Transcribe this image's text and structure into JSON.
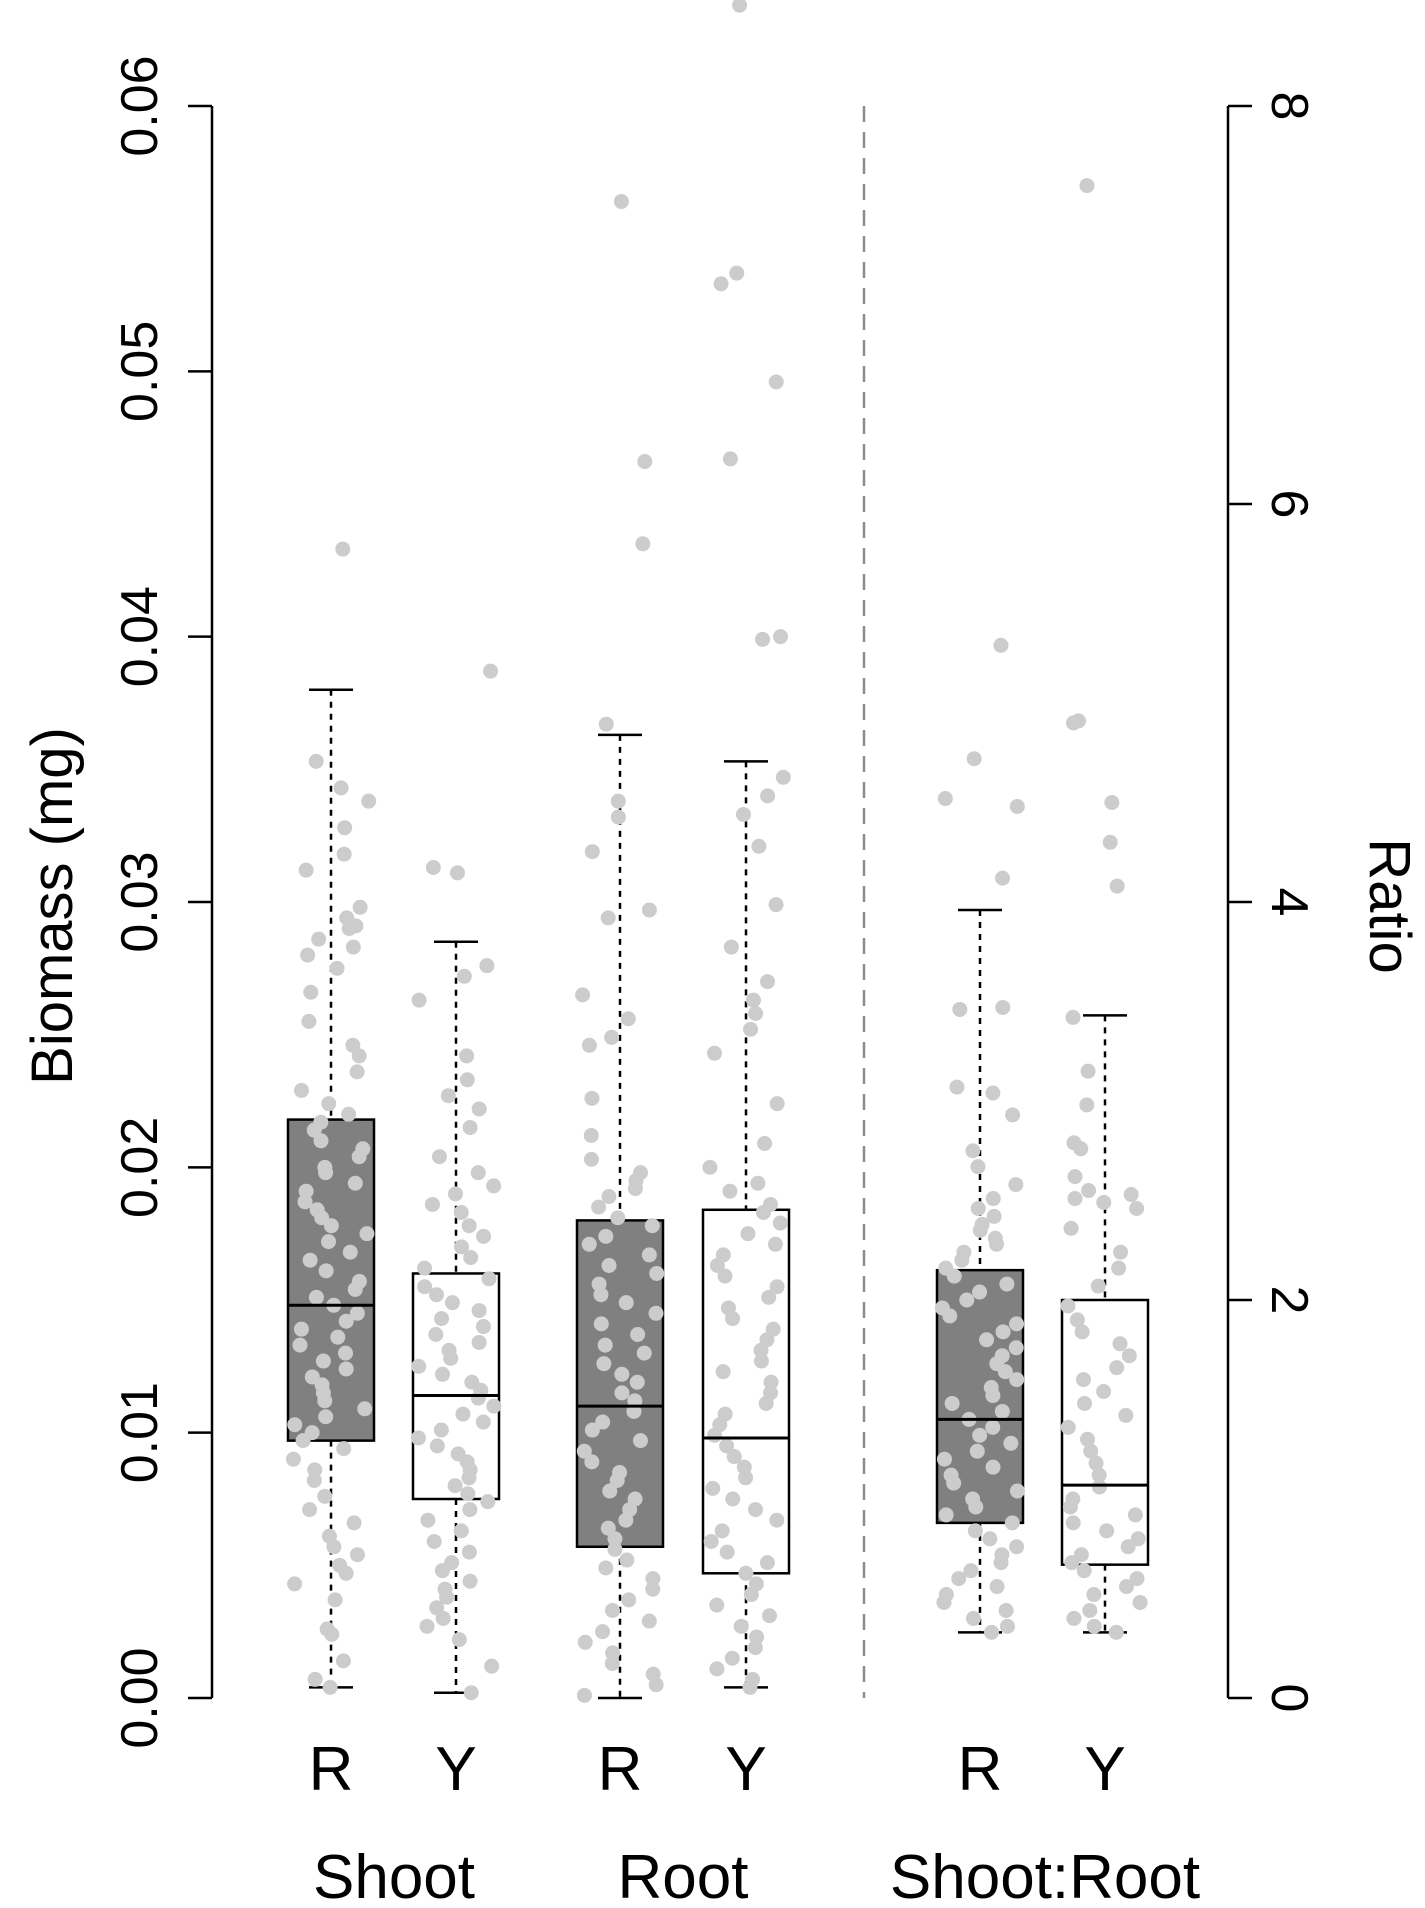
{
  "chart_data": {
    "type": "boxplot",
    "left_axis": {
      "label": "Biomass (mg)",
      "ylim": [
        0,
        0.06
      ],
      "ticks": [
        "0.00",
        "0.01",
        "0.02",
        "0.03",
        "0.04",
        "0.05",
        "0.06"
      ]
    },
    "right_axis": {
      "label": "Ratio",
      "ylim": [
        0,
        8
      ],
      "ticks": [
        "0",
        "2",
        "4",
        "6",
        "8"
      ]
    },
    "groups": [
      {
        "name": "Shoot",
        "axis": "left",
        "boxes": [
          {
            "label": "R",
            "fill": "#808080",
            "whisker_low": 0.0004,
            "q1": 0.0097,
            "median": 0.0148,
            "q3": 0.0218,
            "whisker_high": 0.038,
            "points": [
              0.0433,
              0.0353,
              0.0343,
              0.0338,
              0.0328,
              0.0318,
              0.0312,
              0.0298,
              0.0294,
              0.0291,
              0.029,
              0.0286,
              0.0283,
              0.028,
              0.0275,
              0.0266,
              0.0255,
              0.0246,
              0.0242,
              0.0236,
              0.0229,
              0.0224,
              0.022,
              0.0217,
              0.0214,
              0.021,
              0.0207,
              0.0204,
              0.02,
              0.0198,
              0.0194,
              0.0191,
              0.0187,
              0.0184,
              0.0181,
              0.0178,
              0.0175,
              0.0172,
              0.0168,
              0.0165,
              0.0161,
              0.0157,
              0.0154,
              0.0151,
              0.0148,
              0.0145,
              0.0142,
              0.0139,
              0.0136,
              0.0133,
              0.013,
              0.0127,
              0.0124,
              0.0121,
              0.0118,
              0.0115,
              0.0112,
              0.0109,
              0.0106,
              0.0103,
              0.01,
              0.0097,
              0.0094,
              0.009,
              0.0086,
              0.0082,
              0.0076,
              0.0071,
              0.0066,
              0.0061,
              0.0057,
              0.0054,
              0.005,
              0.0047,
              0.0043,
              0.0037,
              0.0026,
              0.0024,
              0.0014,
              0.0007,
              0.0004
            ]
          },
          {
            "label": "Y",
            "fill": "#ffffff",
            "whisker_low": 0.0002,
            "q1": 0.0075,
            "median": 0.0114,
            "q3": 0.016,
            "whisker_high": 0.0285,
            "points": [
              0.0387,
              0.0313,
              0.0311,
              0.0276,
              0.0272,
              0.0263,
              0.0242,
              0.0233,
              0.0227,
              0.0222,
              0.0215,
              0.0204,
              0.0198,
              0.0193,
              0.019,
              0.0186,
              0.0183,
              0.0178,
              0.0174,
              0.017,
              0.0166,
              0.0162,
              0.0158,
              0.0155,
              0.0152,
              0.0149,
              0.0146,
              0.0143,
              0.014,
              0.0137,
              0.0134,
              0.0131,
              0.0128,
              0.0125,
              0.0122,
              0.0119,
              0.0116,
              0.0113,
              0.011,
              0.0107,
              0.0104,
              0.0101,
              0.0098,
              0.0095,
              0.0092,
              0.0089,
              0.0086,
              0.0083,
              0.008,
              0.0077,
              0.0074,
              0.0071,
              0.0067,
              0.0063,
              0.0059,
              0.0055,
              0.0051,
              0.0048,
              0.0044,
              0.0041,
              0.0038,
              0.0034,
              0.003,
              0.0027,
              0.0022,
              0.0012,
              0.0002
            ]
          }
        ]
      },
      {
        "name": "Root",
        "axis": "left",
        "boxes": [
          {
            "label": "R",
            "fill": "#808080",
            "whisker_low": 0.0,
            "q1": 0.0057,
            "median": 0.011,
            "q3": 0.018,
            "whisker_high": 0.0363,
            "points": [
              0.0564,
              0.0466,
              0.0435,
              0.0367,
              0.0338,
              0.0332,
              0.0319,
              0.0297,
              0.0294,
              0.0265,
              0.0256,
              0.0249,
              0.0246,
              0.0226,
              0.0212,
              0.0203,
              0.0198,
              0.0195,
              0.0192,
              0.0189,
              0.0185,
              0.0181,
              0.0178,
              0.0174,
              0.0171,
              0.0167,
              0.0163,
              0.016,
              0.0156,
              0.0152,
              0.0149,
              0.0145,
              0.0141,
              0.0137,
              0.0133,
              0.013,
              0.0126,
              0.0122,
              0.0119,
              0.0115,
              0.0112,
              0.0108,
              0.0104,
              0.0101,
              0.0097,
              0.0093,
              0.0089,
              0.0085,
              0.0082,
              0.0078,
              0.0075,
              0.0071,
              0.0067,
              0.0064,
              0.006,
              0.0056,
              0.0052,
              0.0049,
              0.0045,
              0.0041,
              0.0037,
              0.0033,
              0.0029,
              0.0025,
              0.0021,
              0.0017,
              0.0013,
              0.0009,
              0.0005,
              0.0001
            ]
          },
          {
            "label": "Y",
            "fill": "#ffffff",
            "whisker_low": 0.0004,
            "q1": 0.0047,
            "median": 0.0098,
            "q3": 0.0184,
            "whisker_high": 0.0353,
            "points": [
              0.0638,
              0.0537,
              0.0533,
              0.0496,
              0.0467,
              0.04,
              0.0399,
              0.0347,
              0.034,
              0.0333,
              0.0321,
              0.0299,
              0.0283,
              0.027,
              0.0263,
              0.0258,
              0.0252,
              0.0243,
              0.0224,
              0.0209,
              0.02,
              0.0194,
              0.0191,
              0.0186,
              0.0183,
              0.0179,
              0.0175,
              0.0171,
              0.0167,
              0.0163,
              0.0159,
              0.0155,
              0.0151,
              0.0147,
              0.0143,
              0.0139,
              0.0135,
              0.0131,
              0.0127,
              0.0123,
              0.0119,
              0.0115,
              0.0111,
              0.0107,
              0.0103,
              0.0099,
              0.0095,
              0.0091,
              0.0087,
              0.0083,
              0.0079,
              0.0075,
              0.0071,
              0.0067,
              0.0063,
              0.0059,
              0.0055,
              0.0051,
              0.0047,
              0.0043,
              0.0039,
              0.0035,
              0.0031,
              0.0027,
              0.0023,
              0.0019,
              0.0015,
              0.0011,
              0.0007,
              0.0004
            ]
          }
        ]
      },
      {
        "name": "Shoot:Root",
        "axis": "right",
        "boxes": [
          {
            "label": "R",
            "fill": "#808080",
            "whisker_low": 0.33,
            "q1": 0.88,
            "median": 1.4,
            "q3": 2.15,
            "whisker_high": 3.96,
            "points": [
              5.29,
              4.72,
              4.52,
              4.48,
              4.12,
              3.47,
              3.46,
              3.07,
              3.04,
              2.93,
              2.75,
              2.67,
              2.58,
              2.51,
              2.46,
              2.42,
              2.38,
              2.35,
              2.31,
              2.28,
              2.24,
              2.2,
              2.16,
              2.12,
              2.08,
              2.04,
              2.0,
              1.96,
              1.92,
              1.88,
              1.84,
              1.8,
              1.76,
              1.72,
              1.68,
              1.64,
              1.6,
              1.56,
              1.52,
              1.48,
              1.44,
              1.4,
              1.36,
              1.32,
              1.28,
              1.24,
              1.2,
              1.16,
              1.12,
              1.08,
              1.04,
              1.0,
              0.96,
              0.92,
              0.88,
              0.84,
              0.8,
              0.76,
              0.72,
              0.68,
              0.64,
              0.6,
              0.56,
              0.52,
              0.48,
              0.44,
              0.4,
              0.36,
              0.33
            ]
          },
          {
            "label": "Y",
            "fill": "#ffffff",
            "whisker_low": 0.33,
            "q1": 0.67,
            "median": 1.07,
            "q3": 2.0,
            "whisker_high": 3.43,
            "points": [
              7.6,
              4.91,
              4.9,
              4.5,
              4.3,
              4.08,
              3.42,
              3.15,
              2.98,
              2.79,
              2.76,
              2.62,
              2.55,
              2.53,
              2.51,
              2.49,
              2.46,
              2.36,
              2.24,
              2.16,
              2.07,
              1.97,
              1.9,
              1.84,
              1.78,
              1.72,
              1.66,
              1.6,
              1.54,
              1.48,
              1.42,
              1.36,
              1.3,
              1.24,
              1.18,
              1.12,
              1.06,
              1.0,
              0.96,
              0.92,
              0.88,
              0.84,
              0.8,
              0.76,
              0.72,
              0.68,
              0.64,
              0.6,
              0.56,
              0.52,
              0.48,
              0.44,
              0.4,
              0.36,
              0.33
            ]
          }
        ]
      }
    ]
  }
}
